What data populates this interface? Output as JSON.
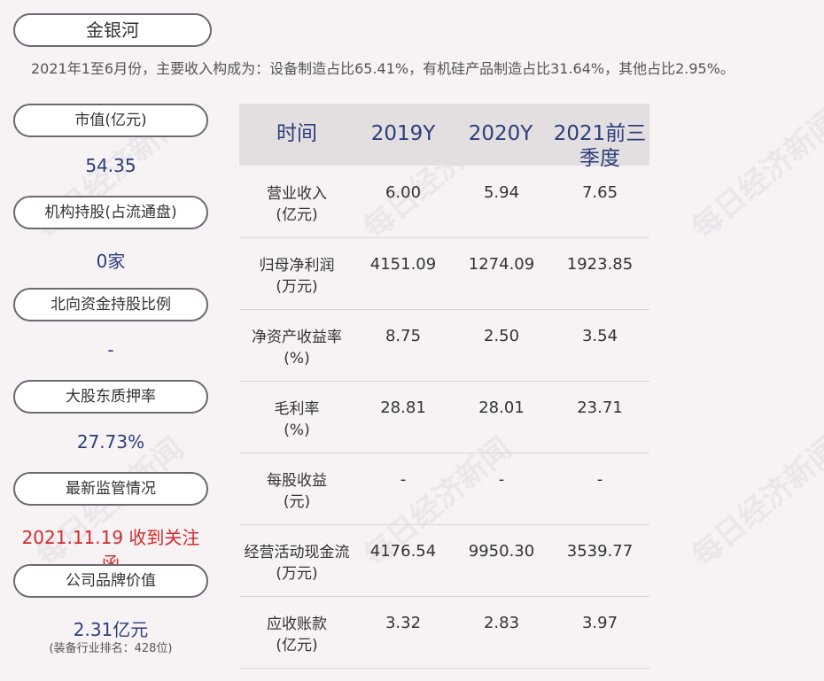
{
  "company_name": "金银河",
  "summary": "2021年1至6月份，主要收入构成为：设备制造占比65.41%，有机硅产品制造占比31.64%，其他占比2.95%。",
  "watermark": "每日经济新闻",
  "sidebar": [
    {
      "label": "市值(亿元)",
      "value": "54.35"
    },
    {
      "label": "机构持股(占流通盘)",
      "value": "0家"
    },
    {
      "label": "北向资金持股比例",
      "value": "-"
    },
    {
      "label": "大股东质押率",
      "value": "27.73%"
    },
    {
      "label": "最新监管情况",
      "value": "2021.11.19 收到关注函"
    },
    {
      "label": "公司品牌价值",
      "value": "2.31亿元",
      "sub": "(装备行业排名：428位)"
    }
  ],
  "table": {
    "headers": [
      "时间",
      "2019Y",
      "2020Y",
      "2021前三季度"
    ],
    "rows": [
      {
        "label1": "营业收入",
        "label2": "(亿元)",
        "values": [
          "6.00",
          "5.94",
          "7.65"
        ]
      },
      {
        "label1": "归母净利润",
        "label2": "(万元)",
        "values": [
          "4151.09",
          "1274.09",
          "1923.85"
        ]
      },
      {
        "label1": "净资产收益率",
        "label2": "(%)",
        "values": [
          "8.75",
          "2.50",
          "3.54"
        ]
      },
      {
        "label1": "毛利率",
        "label2": "(%)",
        "values": [
          "28.81",
          "28.01",
          "23.71"
        ]
      },
      {
        "label1": "每股收益",
        "label2": "(元)",
        "values": [
          "-",
          "-",
          "-"
        ]
      },
      {
        "label1": "经营活动现金流",
        "label2": "(万元)",
        "values": [
          "4176.54",
          "9950.30",
          "3539.77"
        ]
      },
      {
        "label1": "应收账款",
        "label2": "(亿元)",
        "values": [
          "3.32",
          "2.83",
          "3.97"
        ]
      }
    ]
  }
}
